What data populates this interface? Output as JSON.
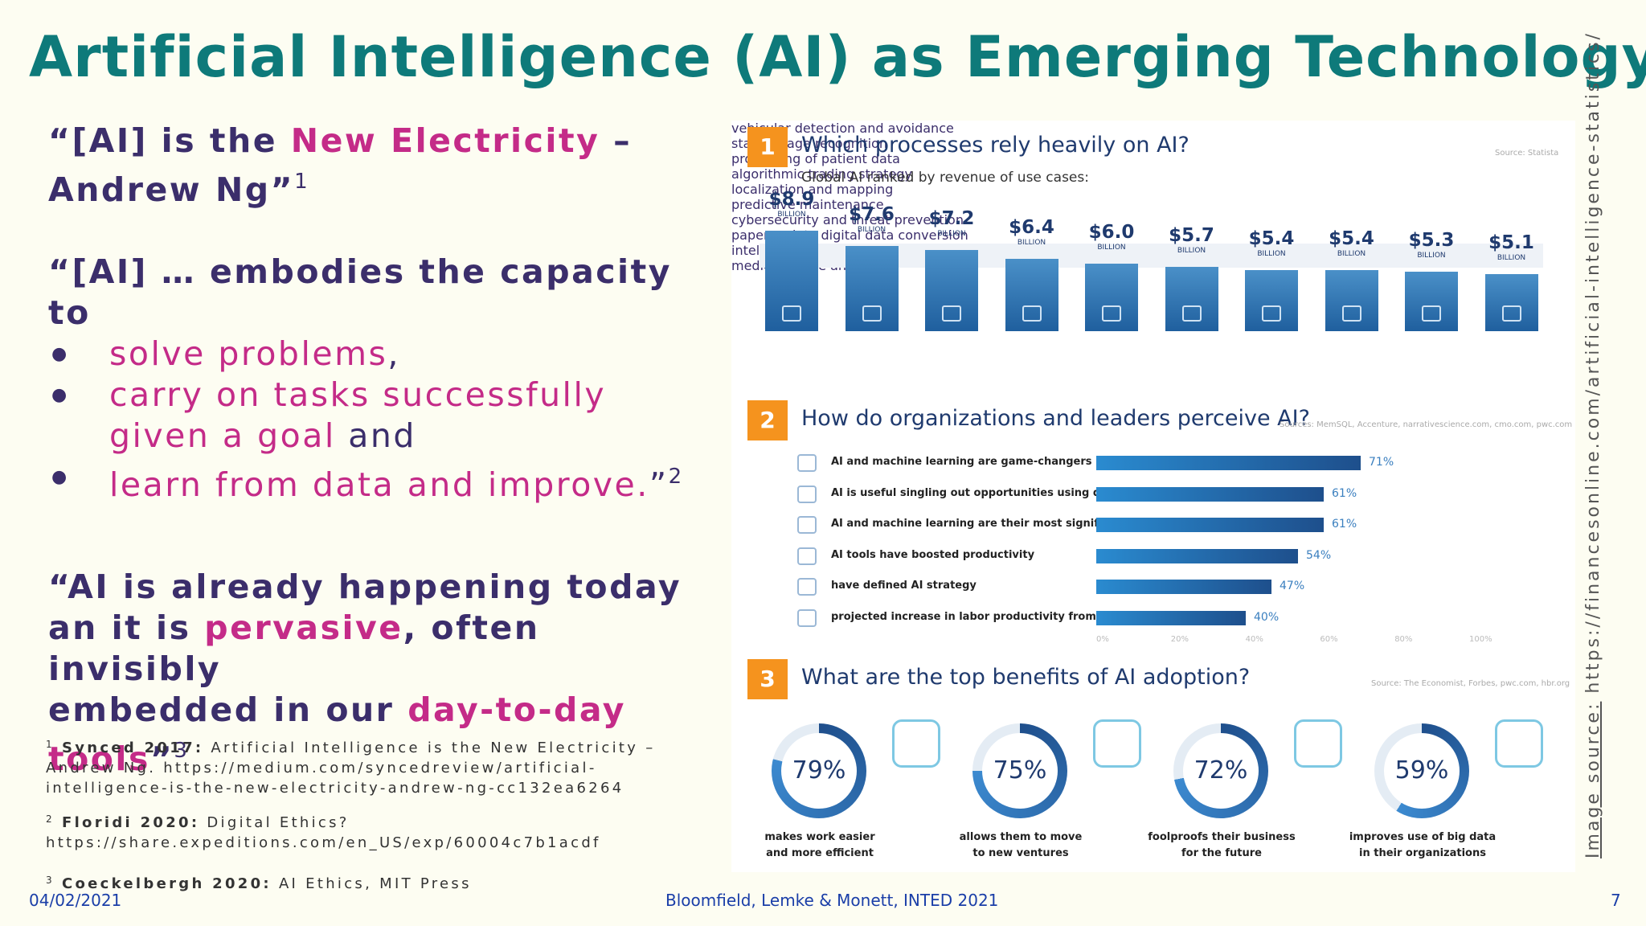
{
  "title": "Artificial Intelligence (AI) as Emerging Technology",
  "quote1": {
    "open": "“[AI] is the ",
    "highlight": "New Electricity",
    "rest": " –",
    "line2": "Andrew Ng”",
    "sup": "1"
  },
  "quote2": {
    "intro": "“[AI] … embodies the capacity to",
    "bullets": [
      {
        "text": "solve problems",
        "after": ","
      },
      {
        "text": "carry on tasks successfully",
        "after": ""
      },
      {
        "text": "learn from data and improve.",
        "after": "”"
      }
    ],
    "continuation": "given a goal",
    "continuation_after": " and",
    "sup": "2"
  },
  "quote3": {
    "p1": "“AI is already happening today",
    "p2": "an it is ",
    "h1": "pervasive",
    "p3": ", often invisibly",
    "p4": "embedded in our ",
    "h2": "day-to-day",
    "h3": "tools",
    "p5": "”",
    "sup": "3"
  },
  "refs": [
    {
      "num": "1",
      "author": "Synced 2017:",
      "text": " Artificial Intelligence is the New Electricity – Andrew Ng. https://medium.com/syncedreview/artificial-intelligence-is-the-new-electricity-andrew-ng-cc132ea6264"
    },
    {
      "num": "2",
      "author": "Floridi 2020:",
      "text": " Digital Ethics? https://share.expeditions.com/en_US/exp/60004c7b1acdf"
    },
    {
      "num": "3",
      "author": "Coeckelbergh 2020:",
      "text": " AI Ethics, MIT Press"
    }
  ],
  "footer": {
    "date": "04/02/2021",
    "center": "Bloomfield, Lemke & Monett, INTED 2021",
    "page": "7"
  },
  "image_source": {
    "label": "Image source:",
    "url": " https://financesonline.com/artificial-intelligence-statistics/"
  },
  "infographic": {
    "s1": {
      "num": "1",
      "title": "Which processes rely heavily on AI?",
      "source": "Source: Statista",
      "subtitle": "Global AI ranked by revenue of use cases:",
      "unit": "BILLION",
      "items": [
        {
          "value": 8.9,
          "label": "$8.9",
          "name": "vehicular detection and avoidance"
        },
        {
          "value": 7.6,
          "label": "$7.6",
          "name": "static image recognition"
        },
        {
          "value": 7.2,
          "label": "$7.2",
          "name": "processing of patient data"
        },
        {
          "value": 6.4,
          "label": "$6.4",
          "name": "algorithmic trading strategy"
        },
        {
          "value": 6.0,
          "label": "$6.0",
          "name": "localization and mapping"
        },
        {
          "value": 5.7,
          "label": "$5.7",
          "name": "predictive maintenance"
        },
        {
          "value": 5.4,
          "label": "$5.4",
          "name": "cybersecurity and threat prevention"
        },
        {
          "value": 5.4,
          "label": "$5.4",
          "name": "paperwork to digital data conversion"
        },
        {
          "value": 5.3,
          "label": "$5.3",
          "name": "intelligent HR systems"
        },
        {
          "value": 5.1,
          "label": "$5.1",
          "name": "medical image analysis"
        }
      ]
    },
    "s2": {
      "num": "2",
      "title": "How do organizations and leaders perceive AI?",
      "source": "Sources: MemSQL, Accenture, narrativescience.com, cmo.com, pwc.com",
      "items": [
        {
          "pct": 71,
          "label": "71%",
          "text": "AI and machine learning are game-changers"
        },
        {
          "pct": 61,
          "label": "61%",
          "text": "AI is useful singling out opportunities using data"
        },
        {
          "pct": 61,
          "label": "61%",
          "text": "AI and machine learning are their most significant initiative"
        },
        {
          "pct": 54,
          "label": "54%",
          "text": "AI tools have boosted productivity"
        },
        {
          "pct": 47,
          "label": "47%",
          "text": "have defined AI strategy"
        },
        {
          "pct": 40,
          "label": "40%",
          "text": "projected increase in labor productivity from AI use"
        }
      ],
      "axis": [
        "0%",
        "20%",
        "40%",
        "60%",
        "80%",
        "100%"
      ]
    },
    "s3": {
      "num": "3",
      "title": "What are the top benefits of AI adoption?",
      "source": "Source: The Economist, Forbes, pwc.com, hbr.org",
      "items": [
        {
          "pct": 79,
          "label": "79%",
          "line1": "makes work easier",
          "line2": "and more efficient"
        },
        {
          "pct": 75,
          "label": "75%",
          "line1": "allows them to move",
          "line2": "to new ventures"
        },
        {
          "pct": 72,
          "label": "72%",
          "line1": "foolproofs their business",
          "line2": "for the future"
        },
        {
          "pct": 59,
          "label": "59%",
          "line1": "improves use of big data",
          "line2": "in their organizations"
        }
      ]
    }
  }
}
